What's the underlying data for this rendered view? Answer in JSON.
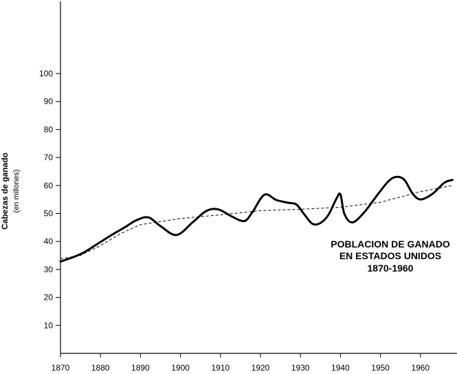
{
  "chart_data": {
    "type": "line",
    "title_lines": [
      "POBLACION DE GANADO",
      "EN ESTADOS UNIDOS",
      "1870-1960"
    ],
    "ylabel": "Cabezas de ganado",
    "ylabel_sub": "(en millones)",
    "xlabel": "",
    "x_ticks": [
      1870,
      1880,
      1890,
      1900,
      1910,
      1920,
      1930,
      1940,
      1950,
      1960
    ],
    "y_ticks": [
      10,
      20,
      30,
      40,
      50,
      60,
      70,
      80,
      90,
      100
    ],
    "xlim": [
      1870,
      1970
    ],
    "ylim": [
      0,
      125
    ],
    "grid": false,
    "series": [
      {
        "style": "solid",
        "x": [
          1870,
          1873,
          1876,
          1880,
          1883,
          1886,
          1889,
          1892,
          1895,
          1899,
          1903,
          1906,
          1908,
          1910,
          1913,
          1916,
          1918,
          1921,
          1924,
          1927,
          1929,
          1931,
          1933,
          1935,
          1937,
          1939,
          1940,
          1941,
          1943,
          1946,
          1949,
          1952,
          1954,
          1956,
          1958,
          1960,
          1963,
          1966,
          1968
        ],
        "values": [
          32.8,
          34.3,
          36.2,
          39.8,
          42.5,
          45.0,
          47.6,
          48.6,
          45.5,
          42.3,
          46.8,
          50.5,
          51.6,
          51.2,
          48.8,
          47.3,
          50.5,
          56.7,
          54.8,
          53.8,
          53.2,
          49.6,
          46.3,
          46.6,
          49.5,
          55.3,
          56.8,
          49.8,
          46.8,
          50.5,
          56.2,
          61.5,
          63.1,
          62.0,
          57.2,
          55.0,
          57.0,
          61.0,
          62.0
        ]
      },
      {
        "style": "dashed",
        "x": [
          1870,
          1875,
          1880,
          1885,
          1890,
          1900,
          1910,
          1920,
          1930,
          1940,
          1950,
          1960,
          1968
        ],
        "values": [
          33.8,
          35.0,
          38.5,
          42.8,
          46.0,
          48.2,
          49.5,
          51.0,
          51.5,
          52.2,
          54.0,
          57.8,
          60.0
        ]
      }
    ]
  }
}
